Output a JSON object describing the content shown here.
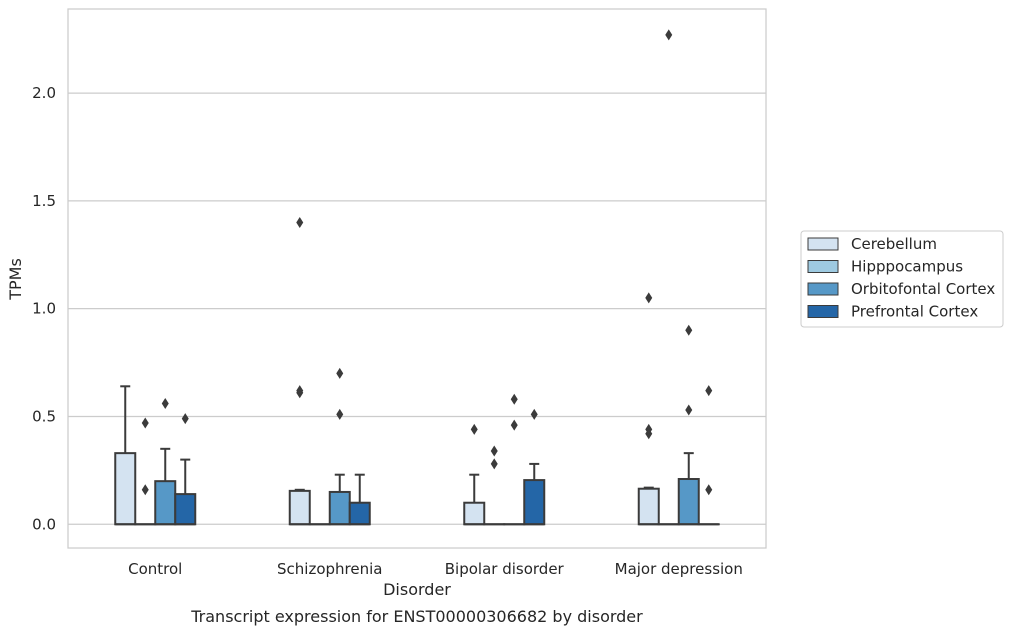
{
  "chart_data": {
    "type": "box",
    "caption": "Transcript expression for ENST00000306682 by disorder",
    "xlabel": "Disorder",
    "ylabel": "TPMs",
    "ylim": [
      -0.11,
      2.39
    ],
    "yticks": [
      0.0,
      0.5,
      1.0,
      1.5,
      2.0
    ],
    "ytick_labels": [
      "0.0",
      "0.5",
      "1.0",
      "1.5",
      "2.0"
    ],
    "grid": "horizontal",
    "legend_position": "right",
    "categories": [
      "Control",
      "Schizophrenia",
      "Bipolar disorder",
      "Major depression"
    ],
    "series": [
      {
        "name": "Cerebellum",
        "color": "#d4e3f1",
        "boxes": [
          {
            "q1": 0.0,
            "median": 0.0,
            "q3": 0.33,
            "whisker_low": 0.0,
            "whisker_high": 0.64,
            "outliers": []
          },
          {
            "q1": 0.0,
            "median": 0.0,
            "q3": 0.155,
            "whisker_low": 0.0,
            "whisker_high": 0.16,
            "outliers": [
              0.61,
              0.62,
              1.4
            ]
          },
          {
            "q1": 0.0,
            "median": 0.0,
            "q3": 0.1,
            "whisker_low": 0.0,
            "whisker_high": 0.23,
            "outliers": [
              0.44
            ]
          },
          {
            "q1": 0.0,
            "median": 0.0,
            "q3": 0.165,
            "whisker_low": 0.0,
            "whisker_high": 0.17,
            "outliers": [
              0.42,
              0.44,
              1.05
            ]
          }
        ]
      },
      {
        "name": "Hipppocampus",
        "color": "#9ecae1",
        "boxes": [
          {
            "q1": 0.0,
            "median": 0.0,
            "q3": 0.0,
            "whisker_low": 0.0,
            "whisker_high": 0.0,
            "outliers": [
              0.16,
              0.47
            ]
          },
          {
            "q1": 0.0,
            "median": 0.0,
            "q3": 0.0,
            "whisker_low": 0.0,
            "whisker_high": 0.0,
            "outliers": []
          },
          {
            "q1": 0.0,
            "median": 0.0,
            "q3": 0.0,
            "whisker_low": 0.0,
            "whisker_high": 0.0,
            "outliers": [
              0.28,
              0.34
            ]
          },
          {
            "q1": 0.0,
            "median": 0.0,
            "q3": 0.0,
            "whisker_low": 0.0,
            "whisker_high": 0.0,
            "outliers": [
              2.27
            ]
          }
        ]
      },
      {
        "name": "Orbitofontal Cortex",
        "color": "#5698c7",
        "boxes": [
          {
            "q1": 0.0,
            "median": 0.0,
            "q3": 0.2,
            "whisker_low": 0.0,
            "whisker_high": 0.35,
            "outliers": [
              0.56
            ]
          },
          {
            "q1": 0.0,
            "median": 0.0,
            "q3": 0.15,
            "whisker_low": 0.0,
            "whisker_high": 0.23,
            "outliers": [
              0.51,
              0.7
            ]
          },
          {
            "q1": 0.0,
            "median": 0.0,
            "q3": 0.0,
            "whisker_low": 0.0,
            "whisker_high": 0.0,
            "outliers": [
              0.46,
              0.58
            ]
          },
          {
            "q1": 0.0,
            "median": 0.0,
            "q3": 0.21,
            "whisker_low": 0.0,
            "whisker_high": 0.33,
            "outliers": [
              0.53,
              0.9
            ]
          }
        ]
      },
      {
        "name": "Prefrontal Cortex",
        "color": "#2466a7",
        "boxes": [
          {
            "q1": 0.0,
            "median": 0.0,
            "q3": 0.14,
            "whisker_low": 0.0,
            "whisker_high": 0.3,
            "outliers": [
              0.49
            ]
          },
          {
            "q1": 0.0,
            "median": 0.0,
            "q3": 0.1,
            "whisker_low": 0.0,
            "whisker_high": 0.23,
            "outliers": []
          },
          {
            "q1": 0.0,
            "median": 0.0,
            "q3": 0.205,
            "whisker_low": 0.0,
            "whisker_high": 0.28,
            "outliers": [
              0.51
            ]
          },
          {
            "q1": 0.0,
            "median": 0.0,
            "q3": 0.0,
            "whisker_low": 0.0,
            "whisker_high": 0.0,
            "outliers": [
              0.16,
              0.62
            ]
          }
        ]
      }
    ]
  }
}
